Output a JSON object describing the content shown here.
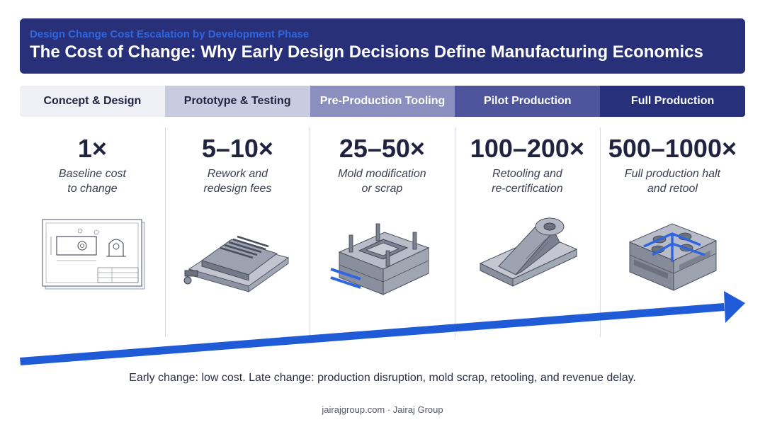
{
  "header": {
    "subtitle": "Design Change Cost Escalation by Development Phase",
    "title": "The Cost of Change: Why Early Design Decisions Define Manufacturing Economics"
  },
  "phases": [
    {
      "label": "Concept & Design",
      "bg": "#eef0f6",
      "fg": "#1f2340"
    },
    {
      "label": "Prototype & Testing",
      "bg": "#c9cce0",
      "fg": "#1f2340"
    },
    {
      "label": "Pre-Production Tooling",
      "bg": "#8a8fc0",
      "fg": "#ffffff"
    },
    {
      "label": "Pilot Production",
      "bg": "#4e559c",
      "fg": "#ffffff"
    },
    {
      "label": "Full Production",
      "bg": "#27307a",
      "fg": "#ffffff"
    }
  ],
  "stages": [
    {
      "multiplier": "1×",
      "desc_line1": "Baseline cost",
      "desc_line2": "to change",
      "illustration": "engineering-drawing-icon"
    },
    {
      "multiplier": "5–10×",
      "desc_line1": "Rework and",
      "desc_line2": "redesign fees",
      "illustration": "prototype-housing-icon"
    },
    {
      "multiplier": "25–50×",
      "desc_line1": "Mold modification",
      "desc_line2": "or scrap",
      "illustration": "mold-tool-icon"
    },
    {
      "multiplier": "100–200×",
      "desc_line1": "Retooling and",
      "desc_line2": "re-certification",
      "illustration": "machined-part-icon"
    },
    {
      "multiplier": "500–1000×",
      "desc_line1": "Full production halt",
      "desc_line2": "and retool",
      "illustration": "production-mold-icon"
    }
  ],
  "footer": {
    "note": "Early change: low cost. Late change: production disruption, mold scrap, retooling, and revenue delay.",
    "credit": "jairajgroup.com · Jairaj Group"
  },
  "colors": {
    "header_bg": "#28307a",
    "subtitle": "#2f66e0",
    "arrow": "#1f5bd6"
  }
}
